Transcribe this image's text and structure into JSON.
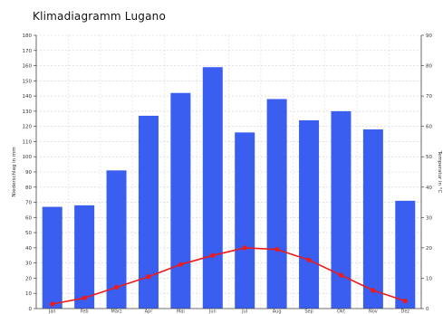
{
  "chart_data": {
    "type": "bar",
    "title": "Klimadiagramm Lugano",
    "categories": [
      "Jan",
      "Feb",
      "März",
      "Apr",
      "Mai",
      "Jun",
      "Jul",
      "Aug",
      "Sep",
      "Okt",
      "Nov",
      "Dez"
    ],
    "ylabel": "Niederschlag in mm",
    "y2label": "Temperatur in °C",
    "ylim": [
      0,
      180
    ],
    "y2lim": [
      0,
      90
    ],
    "yticks": [
      0,
      10,
      20,
      30,
      40,
      50,
      60,
      70,
      80,
      90,
      100,
      110,
      120,
      130,
      140,
      150,
      160,
      170,
      180
    ],
    "y2ticks": [
      0,
      10,
      20,
      30,
      40,
      50,
      60,
      70,
      80,
      90
    ],
    "grid": true,
    "series": [
      {
        "type": "bar",
        "axis": "left",
        "color": "#3a5ff0",
        "values": [
          67,
          68,
          91,
          127,
          142,
          159,
          116,
          138,
          124,
          130,
          118,
          71
        ]
      },
      {
        "type": "line",
        "axis": "right",
        "color": "#ee1a1a",
        "values": [
          1.5,
          3.5,
          7,
          10.5,
          14.5,
          17.5,
          20,
          19.5,
          16,
          11,
          6,
          2.5
        ]
      }
    ]
  }
}
